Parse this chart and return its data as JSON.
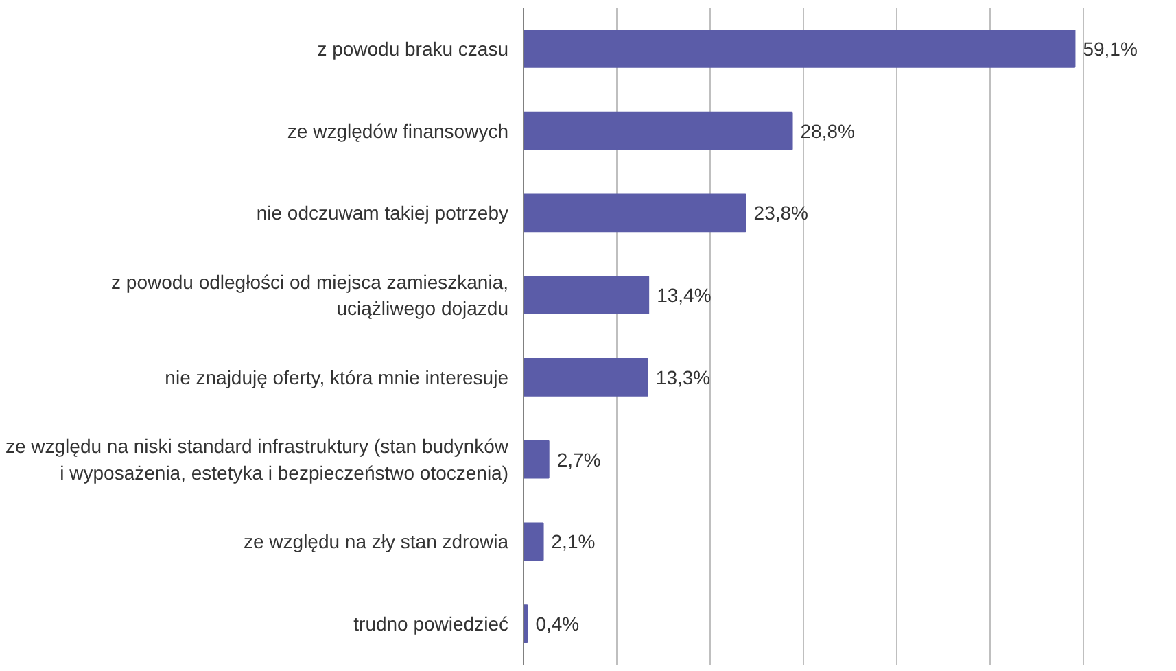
{
  "chart_data": {
    "type": "bar",
    "orientation": "horizontal",
    "categories": [
      "z powodu braku czasu",
      "ze względów finansowych",
      "nie odczuwam takiej potrzeby",
      "z powodu odległości od miejsca zamieszkania,\nuciążliwego dojazdu",
      "nie znajduję oferty, która mnie interesuje",
      "ze względu na niski standard infrastruktury (stan budynków\ni wyposażenia, estetyka i bezpieczeństwo otoczenia)",
      "ze względu na zły stan zdrowia",
      "trudno powiedzieć"
    ],
    "values": [
      59.1,
      28.8,
      23.8,
      13.4,
      13.3,
      2.7,
      2.1,
      0.4
    ],
    "value_labels": [
      "59,1%",
      "28,8%",
      "23,8%",
      "13,4%",
      "13,3%",
      "2,7%",
      "2,1%",
      "0,4%"
    ],
    "color": "#5b5ca8",
    "grid": "x",
    "tick_labels": "y"
  }
}
